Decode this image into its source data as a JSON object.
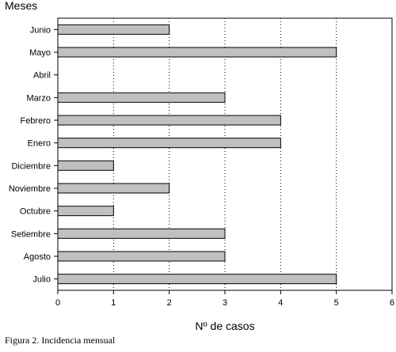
{
  "caption": "Figura 2. Incidencia mensual",
  "chart_data": {
    "type": "bar",
    "orientation": "horizontal",
    "categories": [
      "Junio",
      "Mayo",
      "Abril",
      "Marzo",
      "Febrero",
      "Enero",
      "Diciembre",
      "Noviembre",
      "Octubre",
      "Setiembre",
      "Agosto",
      "Julio"
    ],
    "values": [
      2,
      5,
      0,
      3,
      4,
      4,
      1,
      2,
      1,
      3,
      3,
      5
    ],
    "title": "",
    "xlabel": "Nº de casos",
    "ylabel": "Meses",
    "xlim": [
      0,
      6
    ],
    "xticks": [
      "0",
      "1",
      "2",
      "3",
      "4",
      "5",
      "6"
    ],
    "grid": "vertical-dotted",
    "bar_color": "#c0c0c0",
    "bar_edge_color": "#000000"
  }
}
